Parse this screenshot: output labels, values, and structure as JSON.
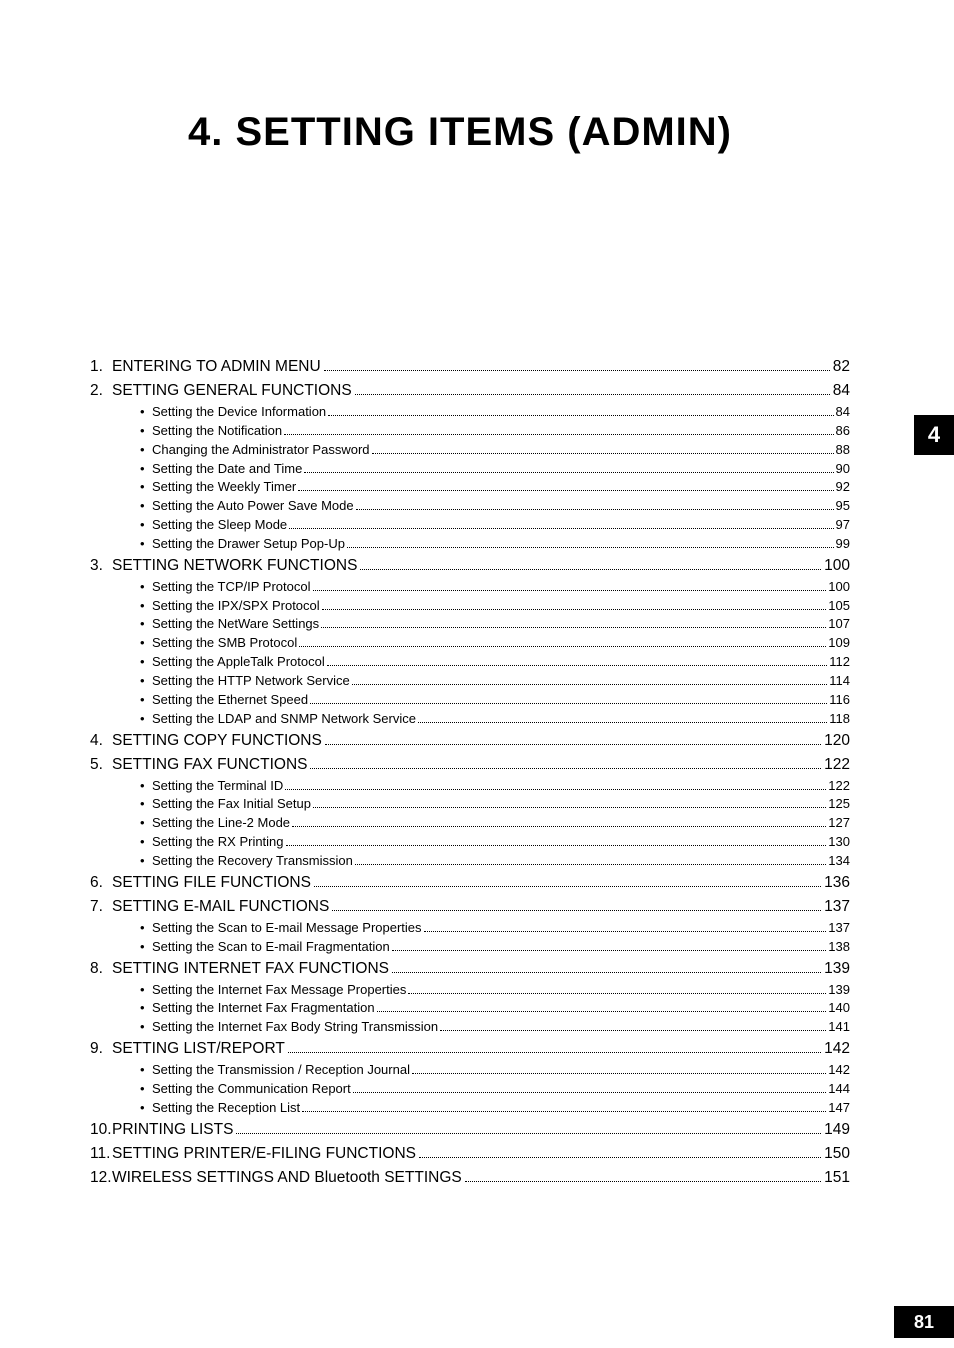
{
  "chapter_tab": "4",
  "page_number": "81",
  "title": "4. SETTING ITEMS (ADMIN)",
  "toc": [
    {
      "num": "1.",
      "label": "ENTERING TO ADMIN MENU",
      "page": "82",
      "subs": []
    },
    {
      "num": "2.",
      "label": "SETTING GENERAL FUNCTIONS",
      "page": "84",
      "subs": [
        {
          "label": "Setting the Device Information",
          "page": "84"
        },
        {
          "label": "Setting the Notification",
          "page": "86"
        },
        {
          "label": "Changing the Administrator Password",
          "page": "88"
        },
        {
          "label": "Setting the Date and Time",
          "page": "90"
        },
        {
          "label": "Setting the Weekly Timer",
          "page": "92"
        },
        {
          "label": "Setting the Auto Power Save Mode",
          "page": "95"
        },
        {
          "label": "Setting the Sleep Mode",
          "page": "97"
        },
        {
          "label": "Setting the Drawer Setup Pop-Up",
          "page": "99"
        }
      ]
    },
    {
      "num": "3.",
      "label": "SETTING NETWORK FUNCTIONS",
      "page": "100",
      "subs": [
        {
          "label": "Setting the TCP/IP Protocol",
          "page": "100"
        },
        {
          "label": "Setting the IPX/SPX Protocol",
          "page": "105"
        },
        {
          "label": "Setting the NetWare Settings",
          "page": "107"
        },
        {
          "label": "Setting the SMB Protocol",
          "page": "109"
        },
        {
          "label": "Setting the AppleTalk Protocol",
          "page": "112"
        },
        {
          "label": "Setting the HTTP Network Service",
          "page": "114"
        },
        {
          "label": "Setting the Ethernet Speed",
          "page": "116"
        },
        {
          "label": "Setting the LDAP and SNMP Network Service",
          "page": "118"
        }
      ]
    },
    {
      "num": "4.",
      "label": "SETTING COPY FUNCTIONS",
      "page": "120",
      "subs": []
    },
    {
      "num": "5.",
      "label": "SETTING FAX FUNCTIONS",
      "page": "122",
      "subs": [
        {
          "label": "Setting the Terminal ID",
          "page": "122"
        },
        {
          "label": "Setting the Fax Initial Setup",
          "page": "125"
        },
        {
          "label": "Setting the Line-2 Mode",
          "page": "127"
        },
        {
          "label": "Setting the RX Printing",
          "page": "130"
        },
        {
          "label": "Setting the Recovery Transmission",
          "page": "134"
        }
      ]
    },
    {
      "num": "6.",
      "label": "SETTING FILE FUNCTIONS",
      "page": "136",
      "subs": []
    },
    {
      "num": "7.",
      "label": "SETTING E-MAIL FUNCTIONS",
      "page": "137",
      "subs": [
        {
          "label": "Setting the Scan to E-mail Message Properties",
          "page": "137"
        },
        {
          "label": "Setting the Scan to E-mail Fragmentation",
          "page": "138"
        }
      ]
    },
    {
      "num": "8.",
      "label": "SETTING INTERNET FAX FUNCTIONS",
      "page": "139",
      "subs": [
        {
          "label": "Setting the Internet Fax Message Properties",
          "page": "139"
        },
        {
          "label": "Setting the Internet Fax Fragmentation",
          "page": "140"
        },
        {
          "label": "Setting the Internet Fax Body String Transmission",
          "page": "141"
        }
      ]
    },
    {
      "num": "9.",
      "label": "SETTING LIST/REPORT",
      "page": "142",
      "subs": [
        {
          "label": "Setting the Transmission / Reception Journal",
          "page": "142"
        },
        {
          "label": "Setting the Communication Report",
          "page": "144"
        },
        {
          "label": "Setting the Reception List",
          "page": "147"
        }
      ]
    },
    {
      "num": "10.",
      "label": "PRINTING LISTS",
      "page": "149",
      "subs": []
    },
    {
      "num": "11.",
      "label": "SETTING PRINTER/E-FILING FUNCTIONS",
      "page": "150",
      "subs": []
    },
    {
      "num": "12.",
      "label": "WIRELESS SETTINGS AND Bluetooth SETTINGS",
      "page": "151",
      "subs": []
    }
  ],
  "colors": {
    "text": "#000000",
    "background": "#ffffff",
    "tab_bg": "#000000",
    "tab_fg": "#ffffff"
  },
  "fonts": {
    "title_size_pt": 30,
    "section_size_pt": 12,
    "sub_size_pt": 10
  }
}
